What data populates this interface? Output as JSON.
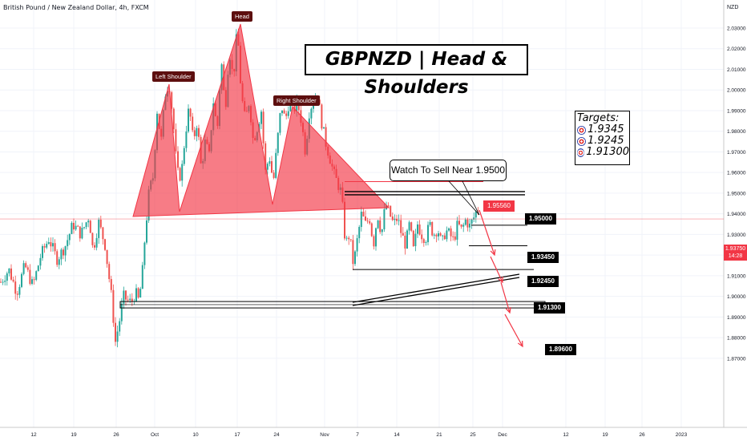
{
  "header": {
    "symbol_title": "British Pound / New Zealand Dollar, 4h, FXCM"
  },
  "title_box": {
    "text": "GBPNZD | Head & Shoulders"
  },
  "targets": {
    "heading": "Targets:",
    "items": [
      "1.9345",
      "1.9245",
      "1.91300"
    ],
    "icon": "target-icon"
  },
  "callout": {
    "text": "Watch To Sell Near 1.9500"
  },
  "pattern_labels": {
    "left": "Left Shoulder",
    "head": "Head",
    "right": "Right Shoulder"
  },
  "price_tags": {
    "red": "1.95560",
    "sell": "1.95000",
    "t1": "1.93450",
    "t2": "1.92450",
    "t3": "1.91300",
    "t4": "1.89600"
  },
  "current_price": {
    "price": "1.93750",
    "countdown": "14:28"
  },
  "colors": {
    "up": "#26a69a",
    "down": "#ef5350",
    "pattern_fill": "#f23645",
    "arrow": "#f23645",
    "black": "#000000"
  },
  "chart_data": {
    "type": "candlestick",
    "symbol": "GBPNZD",
    "timeframe": "4h",
    "currency": "NZD",
    "x_ticks": [
      "12",
      "19",
      "26",
      "Oct",
      "10",
      "17",
      "24",
      "Nov",
      "7",
      "14",
      "21",
      "25",
      "Dec",
      "12",
      "19",
      "26",
      "2023"
    ],
    "y_ticks": [
      "2.03000",
      "2.02000",
      "2.01000",
      "2.00000",
      "1.99000",
      "1.98000",
      "1.97000",
      "1.96000",
      "1.95000",
      "1.94000",
      "1.93000",
      "1.92000",
      "1.91000",
      "1.90000",
      "1.89000",
      "1.88000",
      "1.87000"
    ],
    "ylim": [
      1.865,
      2.037
    ],
    "current_price": 1.9375,
    "pattern": "head-and-shoulders",
    "neckline": 1.9526,
    "levels": [
      1.9556,
      1.95,
      1.9345,
      1.9245,
      1.913,
      1.896
    ],
    "close_path": [
      [
        0,
        1.907
      ],
      [
        10,
        1.913
      ],
      [
        20,
        1.902
      ],
      [
        30,
        1.915
      ],
      [
        40,
        1.905
      ],
      [
        50,
        1.92
      ],
      [
        60,
        1.928
      ],
      [
        70,
        1.918
      ],
      [
        80,
        1.924
      ],
      [
        90,
        1.935
      ],
      [
        100,
        1.93
      ],
      [
        110,
        1.939
      ],
      [
        115,
        1.922
      ],
      [
        122,
        1.936
      ],
      [
        130,
        1.925
      ],
      [
        138,
        1.9
      ],
      [
        143,
        1.878
      ],
      [
        148,
        1.888
      ],
      [
        153,
        1.9
      ],
      [
        158,
        1.898
      ],
      [
        163,
        1.897
      ],
      [
        168,
        1.902
      ],
      [
        172,
        1.898
      ],
      [
        176,
        1.908
      ],
      [
        180,
        1.93
      ],
      [
        185,
        1.951
      ],
      [
        190,
        1.958
      ],
      [
        195,
        1.99
      ],
      [
        200,
        1.975
      ],
      [
        205,
        1.998
      ],
      [
        210,
        2.004
      ],
      [
        215,
        1.985
      ],
      [
        220,
        1.96
      ],
      [
        225,
        1.958
      ],
      [
        230,
        1.978
      ],
      [
        235,
        1.992
      ],
      [
        240,
        1.975
      ],
      [
        245,
        1.985
      ],
      [
        250,
        1.962
      ],
      [
        255,
        1.975
      ],
      [
        260,
        1.968
      ],
      [
        265,
        1.995
      ],
      [
        270,
        1.98
      ],
      [
        275,
        2.015
      ],
      [
        280,
        1.99
      ],
      [
        285,
        2.02
      ],
      [
        290,
        2.005
      ],
      [
        295,
        2.03
      ],
      [
        300,
        1.998
      ],
      [
        305,
        1.985
      ],
      [
        310,
        1.995
      ],
      [
        315,
        1.975
      ],
      [
        320,
        1.982
      ],
      [
        325,
        1.99
      ],
      [
        330,
        1.96
      ],
      [
        335,
        1.968
      ],
      [
        340,
        1.955
      ],
      [
        345,
        1.975
      ],
      [
        350,
        1.993
      ],
      [
        355,
        1.985
      ],
      [
        360,
        1.995
      ],
      [
        365,
        1.99
      ],
      [
        370,
        1.994
      ],
      [
        375,
        1.985
      ],
      [
        380,
        1.97
      ],
      [
        385,
        1.99
      ],
      [
        390,
        1.995
      ],
      [
        395,
        1.998
      ],
      [
        400,
        1.985
      ],
      [
        405,
        1.975
      ],
      [
        410,
        1.968
      ],
      [
        415,
        1.96
      ],
      [
        420,
        1.955
      ],
      [
        425,
        1.95
      ],
      [
        430,
        1.925
      ],
      [
        435,
        1.93
      ],
      [
        440,
        1.915
      ],
      [
        445,
        1.928
      ],
      [
        450,
        1.94
      ],
      [
        455,
        1.935
      ],
      [
        460,
        1.938
      ],
      [
        465,
        1.925
      ],
      [
        470,
        1.94
      ],
      [
        475,
        1.93
      ],
      [
        480,
        1.945
      ],
      [
        485,
        1.94
      ],
      [
        490,
        1.935
      ],
      [
        495,
        1.938
      ],
      [
        500,
        1.93
      ],
      [
        505,
        1.925
      ],
      [
        510,
        1.935
      ],
      [
        515,
        1.922
      ],
      [
        520,
        1.935
      ],
      [
        525,
        1.93
      ],
      [
        530,
        1.928
      ],
      [
        535,
        1.935
      ],
      [
        540,
        1.93
      ],
      [
        545,
        1.933
      ],
      [
        550,
        1.925
      ],
      [
        555,
        1.932
      ],
      [
        560,
        1.93
      ],
      [
        565,
        1.927
      ],
      [
        570,
        1.935
      ],
      [
        575,
        1.932
      ],
      [
        580,
        1.937
      ],
      [
        585,
        1.934
      ],
      [
        590,
        1.938
      ],
      [
        595,
        1.943
      ],
      [
        598,
        1.9375
      ]
    ]
  }
}
